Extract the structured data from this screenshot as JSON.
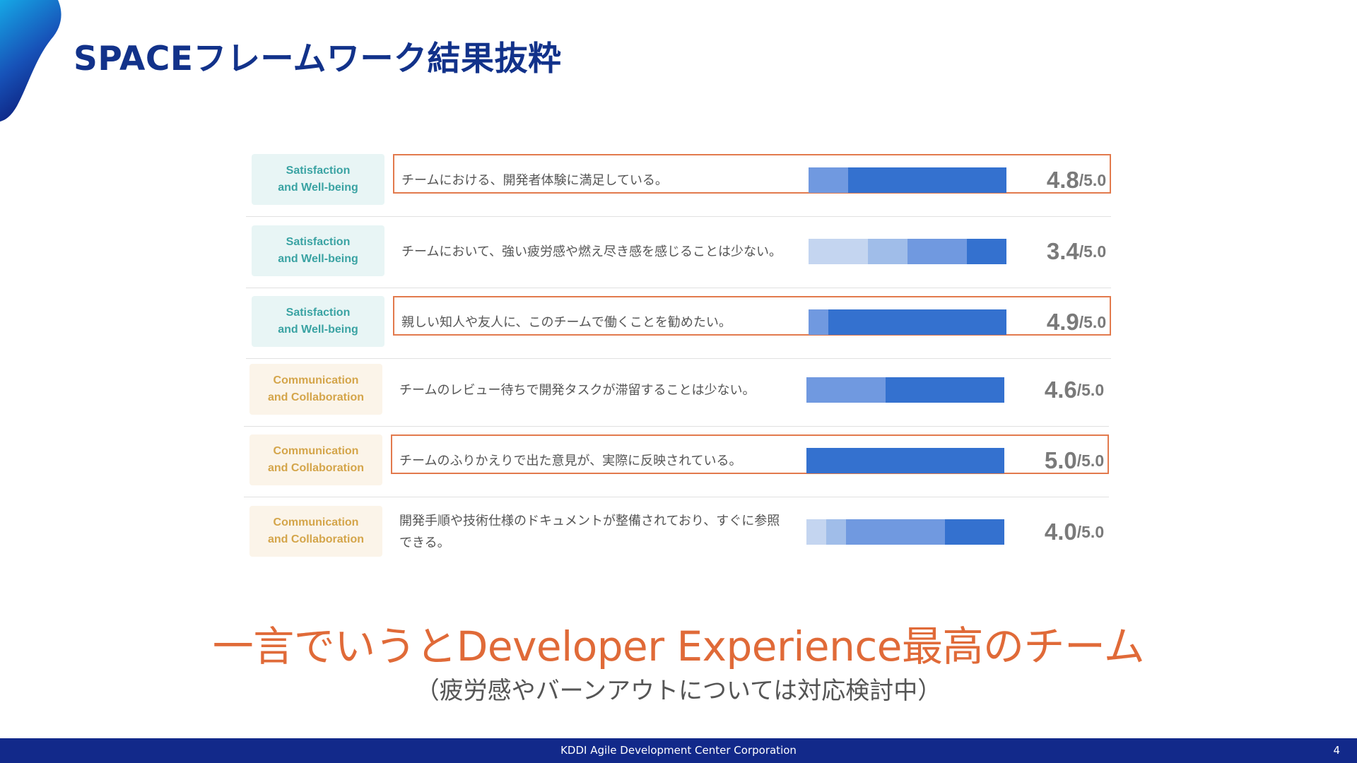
{
  "title": "SPACEフレームワーク結果抜粋",
  "colors": {
    "title": "#12328a",
    "accent_orange": "#e06a38",
    "footer": "#12298a",
    "satisfaction_text": "#3aa3a3",
    "collaboration_text": "#d4a54a",
    "bar_shades": [
      "#c4d5f0",
      "#a0bde9",
      "#7099e0",
      "#3471cf"
    ]
  },
  "rows": [
    {
      "category": [
        "Satisfaction",
        "and Well-being"
      ],
      "question": "チームにおける、開発者体験に満足している。",
      "score": "4.8",
      "max": "/5.0",
      "highlighted": true,
      "segments": [
        0,
        0,
        0.2,
        0.8
      ]
    },
    {
      "category": [
        "Satisfaction",
        "and Well-being"
      ],
      "question": "チームにおいて、強い疲労感や燃え尽き感を感じることは少ない。",
      "score": "3.4",
      "max": "/5.0",
      "highlighted": false,
      "segments": [
        0.3,
        0.2,
        0.3,
        0.2
      ]
    },
    {
      "category": [
        "Satisfaction",
        "and Well-being"
      ],
      "question": "親しい知人や友人に、このチームで働くことを勧めたい。",
      "score": "4.9",
      "max": "/5.0",
      "highlighted": true,
      "segments": [
        0,
        0,
        0.1,
        0.9
      ]
    },
    {
      "category": [
        "Communication",
        "and Collaboration"
      ],
      "question": "チームのレビュー待ちで開発タスクが滞留することは少ない。",
      "score": "4.6",
      "max": "/5.0",
      "highlighted": false,
      "segments": [
        0,
        0,
        0.4,
        0.6
      ]
    },
    {
      "category": [
        "Communication",
        "and Collaboration"
      ],
      "question": "チームのふりかえりで出た意見が、実際に反映されている。",
      "score": "5.0",
      "max": "/5.0",
      "highlighted": true,
      "segments": [
        0,
        0,
        0,
        1.0
      ]
    },
    {
      "category": [
        "Communication",
        "and Collaboration"
      ],
      "question": "開発手順や技術仕様のドキュメントが整備されており、すぐに参照できる。",
      "score": "4.0",
      "max": "/5.0",
      "highlighted": false,
      "segments": [
        0.1,
        0.1,
        0.5,
        0.3
      ]
    }
  ],
  "headline": "一言でいうとDeveloper Experience最高のチーム",
  "subline": "（疲労感やバーンアウトについては対応検討中）",
  "footer": {
    "company": "KDDI Agile Development Center Corporation",
    "page": "4"
  }
}
